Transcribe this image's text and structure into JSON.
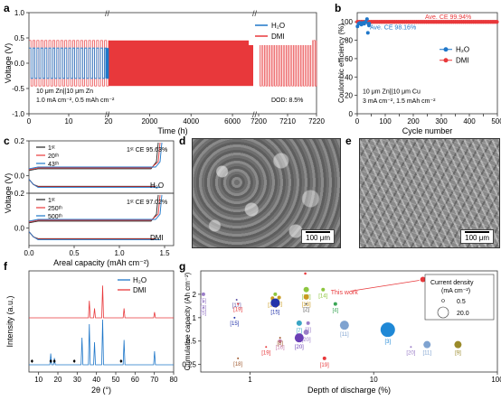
{
  "panel_letters": {
    "a": "a",
    "b": "b",
    "c": "c",
    "d": "d",
    "e": "e",
    "f": "f",
    "g": "g"
  },
  "colors": {
    "h2o": "#1f77c9",
    "dmi": "#e8383b",
    "dark": "#222222"
  },
  "chart_data": [
    {
      "panel": "a",
      "type": "line",
      "xlabel": "Time (h)",
      "ylabel": "Voltage (V)",
      "ylim": [
        -1.0,
        1.0
      ],
      "yticks": [
        "-1.0",
        "-0.5",
        "0.0",
        "0.5",
        "1.0"
      ],
      "x_segments": [
        [
          0,
          20
        ],
        [
          20,
          7000
        ],
        [
          7200,
          7220
        ]
      ],
      "xticks": [
        "0",
        "10",
        "20",
        "2000",
        "4000",
        "6000",
        "7200",
        "7210",
        "7220"
      ],
      "series": [
        {
          "name": "H₂O",
          "color": "#1f77c9",
          "x_range": [
            0,
            20
          ],
          "amplitude": 0.3
        },
        {
          "name": "DMI",
          "color": "#e8383b",
          "x_range": [
            0,
            7220
          ],
          "amplitude": 0.45
        }
      ],
      "annotations": [
        "10 μm Zn||10 μm Zn",
        "1.0 mA cm⁻², 0.5 mAh cm⁻²",
        "DOD: 8.5%"
      ]
    },
    {
      "panel": "b",
      "type": "scatter",
      "xlabel": "Cycle number",
      "ylabel": "Coulombic efficiency (%)",
      "xlim": [
        0,
        500
      ],
      "ylim": [
        0,
        110
      ],
      "xticks": [
        0,
        50,
        100,
        150,
        200,
        250,
        300,
        350,
        400,
        450,
        500
      ],
      "yticks": [
        0,
        20,
        40,
        60,
        80,
        100
      ],
      "series": [
        {
          "name": "H₂O",
          "color": "#1f77c9",
          "x": [
            1,
            5,
            10,
            15,
            20,
            25,
            30,
            35,
            38,
            40,
            42,
            43
          ],
          "y": [
            95,
            98,
            99,
            97,
            99,
            98,
            100,
            103,
            88,
            98,
            96,
            98
          ]
        },
        {
          "name": "DMI",
          "color": "#e8383b",
          "x_range": [
            1,
            500
          ],
          "value": 99.94
        }
      ],
      "annotations": [
        "Ave. CE 99.94%",
        "Ave. CE 98.16%",
        "10 μm Zn||10 μm Cu",
        "3 mA cm⁻², 1.5 mAh cm⁻²"
      ]
    },
    {
      "panel": "c",
      "type": "line",
      "xlabel": "Areal capacity (mAh cm⁻²)",
      "ylabel": "Voltage (V)",
      "xlim": [
        0,
        1.6
      ],
      "xticks": [
        "0.0",
        "0.5",
        "1.0",
        "1.5"
      ],
      "subplots": [
        {
          "label": "H₂O",
          "ce": "1ˢᵗ CE 95.63%",
          "ylim": [
            -0.1,
            0.2
          ],
          "yticks": [
            "0.0",
            "0.2"
          ],
          "series": [
            {
              "name": "1ˢᵗ",
              "color": "#222222"
            },
            {
              "name": "20ᵗʰ",
              "color": "#e8383b"
            },
            {
              "name": "43ᵗʰ",
              "color": "#1f77c9"
            }
          ]
        },
        {
          "label": "DMI",
          "ce": "1ˢᵗ CE 97.02%",
          "ylim": [
            -0.1,
            0.2
          ],
          "yticks": [
            "0.0",
            "0.2"
          ],
          "series": [
            {
              "name": "1ˢᵗ",
              "color": "#222222"
            },
            {
              "name": "250ᵗʰ",
              "color": "#e8383b"
            },
            {
              "name": "500ᵗʰ",
              "color": "#1f77c9"
            }
          ]
        }
      ]
    },
    {
      "panel": "f",
      "type": "line",
      "xlabel": "2θ (°)",
      "ylabel": "Intensity (a.u.)",
      "xlim": [
        5,
        80
      ],
      "xticks": [
        10,
        20,
        30,
        40,
        50,
        60,
        70,
        80
      ],
      "series": [
        {
          "name": "H₂O",
          "color": "#1f77c9",
          "peaks": [
            [
              16.3,
              0.25
            ],
            [
              18.2,
              0.15
            ],
            [
              32.5,
              0.6
            ],
            [
              36.3,
              0.9
            ],
            [
              39.0,
              0.5
            ],
            [
              43.2,
              1.0
            ],
            [
              54.3,
              0.55
            ],
            [
              70.1,
              0.3
            ]
          ]
        },
        {
          "name": "DMI",
          "color": "#e8383b",
          "peaks": [
            [
              36.3,
              0.45
            ],
            [
              39.0,
              0.25
            ],
            [
              43.2,
              0.85
            ],
            [
              54.3,
              0.25
            ],
            [
              70.1,
              0.15
            ]
          ]
        }
      ],
      "markers": {
        "symbol": "♦",
        "x": [
          6.6,
          16.3,
          18.2,
          28.5,
          52.8
        ]
      }
    },
    {
      "panel": "g",
      "type": "scatter",
      "xlabel": "Depth of discharge (%)",
      "ylabel": "Cumulative capacity (Ah cm⁻²)",
      "xscale": "log",
      "yscale": "log",
      "xlim": [
        0.1,
        100
      ],
      "ylim": [
        0.2,
        4
      ],
      "xticks": [
        "1",
        "10",
        "100"
      ],
      "yticks": [
        "0.25",
        "0.5",
        "1",
        "2"
      ],
      "legend": {
        "title": "Current density (mA cm⁻²)",
        "entries": [
          "0.5",
          "20.0"
        ],
        "position": "top-right"
      },
      "points": [
        {
          "ref": "[5]",
          "x": 0.42,
          "y": 2.0,
          "color": "#9b7ec8",
          "cd": 2
        },
        {
          "ref": "[17]",
          "x": 0.78,
          "y": 1.7,
          "color": "#5a4fa3",
          "cd": 1
        },
        {
          "ref": "[19]",
          "x": 0.8,
          "y": 1.5,
          "color": "#e8383b",
          "cd": 1
        },
        {
          "ref": "[3]",
          "x": 0.42,
          "y": 1.6,
          "color": "#9b7ec8",
          "cd": 1
        },
        {
          "ref": "[5]",
          "x": 0.42,
          "y": 1.35,
          "color": "#9b7ec8",
          "cd": 1
        },
        {
          "ref": "[15]",
          "x": 0.75,
          "y": 1.0,
          "color": "#2233aa",
          "cd": 1
        },
        {
          "ref": "[12]",
          "x": 1.6,
          "y": 2.0,
          "color": "#8dc63f",
          "cd": 2
        },
        {
          "ref": "[10]",
          "x": 1.52,
          "y": 1.78,
          "color": "#c99a1f",
          "cd": 2
        },
        {
          "ref": "[6]",
          "x": 1.72,
          "y": 1.82,
          "color": "#c99a1f",
          "cd": 2
        },
        {
          "ref": "[15]",
          "x": 1.6,
          "y": 1.55,
          "color": "#2233aa",
          "cd": 5
        },
        {
          "ref": "[12]",
          "x": 2.85,
          "y": 2.3,
          "color": "#8dc63f",
          "cd": 3
        },
        {
          "ref": "[14]",
          "x": 3.9,
          "y": 2.3,
          "color": "#8dc63f",
          "cd": 2
        },
        {
          "ref": "[13]",
          "x": 2.85,
          "y": 1.85,
          "color": "#c99a1f",
          "cd": 3
        },
        {
          "ref": "[2]",
          "x": 2.85,
          "y": 1.5,
          "color": "#555555",
          "cd": 1
        },
        {
          "ref": "[4]",
          "x": 4.9,
          "y": 1.5,
          "color": "#3aa655",
          "cd": 2
        },
        {
          "ref": "[7]",
          "x": 2.5,
          "y": 0.85,
          "color": "#39a5c4",
          "cd": 3
        },
        {
          "ref": "[3]",
          "x": 2.95,
          "y": 0.85,
          "color": "#9b7ec8",
          "cd": 2
        },
        {
          "ref": "[11]",
          "x": 5.8,
          "y": 0.8,
          "color": "#7fa3d0",
          "cd": 5
        },
        {
          "ref": "[20]",
          "x": 2.85,
          "y": 0.65,
          "color": "#9b7ec8",
          "cd": 3
        },
        {
          "ref": "[20]",
          "x": 2.5,
          "y": 0.55,
          "color": "#6a3fb5",
          "cd": 5
        },
        {
          "ref": "[16]",
          "x": 1.75,
          "y": 0.5,
          "color": "#c87fb0",
          "cd": 2
        },
        {
          "ref": "[8]",
          "x": 1.75,
          "y": 0.55,
          "color": "#a05a30",
          "cd": 1
        },
        {
          "ref": "[3]",
          "x": 13,
          "y": 0.7,
          "color": "#1f88d6",
          "cd": 8
        },
        {
          "ref": "[19]",
          "x": 1.35,
          "y": 0.42,
          "color": "#e8383b",
          "cd": 1
        },
        {
          "ref": "[19]",
          "x": 4.0,
          "y": 0.3,
          "color": "#e8383b",
          "cd": 2
        },
        {
          "ref": "[18]",
          "x": 0.8,
          "y": 0.3,
          "color": "#a05a30",
          "cd": 1
        },
        {
          "ref": "[11]",
          "x": 27,
          "y": 0.45,
          "color": "#7fa3d0",
          "cd": 4
        },
        {
          "ref": "[9]",
          "x": 48,
          "y": 0.45,
          "color": "#9a8a2a",
          "cd": 4
        },
        {
          "ref": "[20]",
          "x": 20,
          "y": 0.42,
          "color": "#9b7ec8",
          "cd": 1
        },
        {
          "ref": "This work",
          "x": 25,
          "y": 3.1,
          "color": "#e8383b",
          "cd": 3
        }
      ],
      "this_work_label": "This work"
    }
  ],
  "panel_d": {
    "scale_label": "100 μm"
  },
  "panel_e": {
    "scale_label": "100 μm"
  }
}
